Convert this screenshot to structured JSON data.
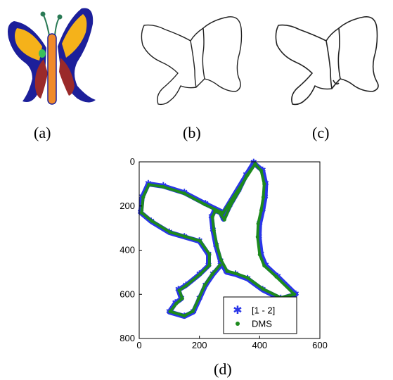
{
  "captions": {
    "a": "(a)",
    "b": "(b)",
    "c": "(c)",
    "d": "(d)"
  },
  "colors": {
    "wing_yellow": "#f5b21a",
    "wing_blue": "#1c1f9a",
    "wing_red": "#9a2a2a",
    "body_orange": "#f08a2a",
    "spot_green": "#39c05a",
    "series_blue": "#2a36e8",
    "series_green": "#1d8a1d"
  },
  "chart_data": {
    "type": "scatter",
    "title": "",
    "xlabel": "",
    "ylabel": "",
    "xlim": [
      0,
      600
    ],
    "ylim": [
      800,
      0
    ],
    "y_axis_reversed": true,
    "xticks": [
      0,
      200,
      400,
      600
    ],
    "xtick_labels": [
      "0",
      "200",
      "400",
      "600"
    ],
    "yticks": [
      0,
      200,
      400,
      600,
      800
    ],
    "ytick_labels": [
      "0",
      "200",
      "400",
      "600",
      "800"
    ],
    "legend_position": "bottom-right",
    "grid": false,
    "series": [
      {
        "name": "[1 - 2]",
        "marker": "asterisk",
        "color": "#2a36e8",
        "points": [
          [
            380,
            5
          ],
          [
            410,
            40
          ],
          [
            420,
            100
          ],
          [
            418,
            160
          ],
          [
            410,
            220
          ],
          [
            400,
            280
          ],
          [
            398,
            340
          ],
          [
            405,
            420
          ],
          [
            420,
            470
          ],
          [
            460,
            520
          ],
          [
            520,
            600
          ],
          [
            470,
            620
          ],
          [
            410,
            580
          ],
          [
            360,
            530
          ],
          [
            320,
            510
          ],
          [
            290,
            500
          ],
          [
            270,
            450
          ],
          [
            255,
            380
          ],
          [
            245,
            310
          ],
          [
            240,
            250
          ],
          [
            250,
            220
          ],
          [
            270,
            230
          ],
          [
            280,
            260
          ],
          [
            300,
            200
          ],
          [
            330,
            130
          ],
          [
            355,
            60
          ],
          [
            380,
            5
          ],
          [
            280,
            230
          ],
          [
            220,
            190
          ],
          [
            150,
            140
          ],
          [
            80,
            110
          ],
          [
            30,
            100
          ],
          [
            10,
            160
          ],
          [
            5,
            230
          ],
          [
            40,
            270
          ],
          [
            100,
            320
          ],
          [
            150,
            340
          ],
          [
            200,
            360
          ],
          [
            230,
            420
          ],
          [
            230,
            470
          ],
          [
            200,
            510
          ],
          [
            155,
            560
          ],
          [
            130,
            580
          ],
          [
            140,
            620
          ],
          [
            120,
            640
          ],
          [
            100,
            680
          ],
          [
            150,
            700
          ],
          [
            180,
            680
          ],
          [
            200,
            620
          ],
          [
            220,
            560
          ],
          [
            245,
            510
          ],
          [
            270,
            470
          ]
        ]
      },
      {
        "name": "DMS",
        "marker": "dot",
        "color": "#1d8a1d",
        "points": [
          [
            385,
            10
          ],
          [
            405,
            40
          ],
          [
            415,
            100
          ],
          [
            412,
            160
          ],
          [
            405,
            220
          ],
          [
            395,
            280
          ],
          [
            393,
            340
          ],
          [
            400,
            420
          ],
          [
            415,
            470
          ],
          [
            455,
            520
          ],
          [
            515,
            600
          ],
          [
            470,
            615
          ],
          [
            410,
            575
          ],
          [
            360,
            525
          ],
          [
            320,
            505
          ],
          [
            292,
            495
          ],
          [
            272,
            445
          ],
          [
            258,
            378
          ],
          [
            248,
            310
          ],
          [
            243,
            250
          ],
          [
            252,
            223
          ],
          [
            268,
            232
          ],
          [
            283,
            262
          ],
          [
            302,
            200
          ],
          [
            332,
            130
          ],
          [
            357,
            62
          ],
          [
            385,
            10
          ],
          [
            278,
            232
          ],
          [
            218,
            193
          ],
          [
            150,
            143
          ],
          [
            80,
            113
          ],
          [
            32,
            103
          ],
          [
            13,
            160
          ],
          [
            8,
            230
          ],
          [
            42,
            268
          ],
          [
            102,
            318
          ],
          [
            152,
            338
          ],
          [
            202,
            358
          ],
          [
            233,
            418
          ],
          [
            233,
            468
          ],
          [
            203,
            508
          ],
          [
            158,
            558
          ],
          [
            133,
            582
          ],
          [
            143,
            618
          ],
          [
            123,
            642
          ],
          [
            103,
            678
          ],
          [
            150,
            697
          ],
          [
            178,
            677
          ],
          [
            198,
            618
          ],
          [
            218,
            558
          ],
          [
            243,
            508
          ],
          [
            268,
            468
          ]
        ]
      }
    ]
  }
}
